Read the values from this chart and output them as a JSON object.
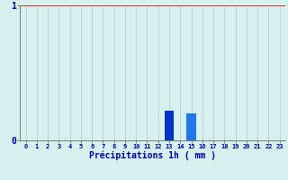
{
  "hours": [
    0,
    1,
    2,
    3,
    4,
    5,
    6,
    7,
    8,
    9,
    10,
    11,
    12,
    13,
    14,
    15,
    16,
    17,
    18,
    19,
    20,
    21,
    22,
    23
  ],
  "values": [
    0,
    0,
    0,
    0,
    0,
    0,
    0,
    0,
    0,
    0,
    0,
    0,
    0,
    0.22,
    0,
    0.2,
    0,
    0,
    0,
    0,
    0,
    0,
    0,
    0
  ],
  "bar_color_dark": "#0033cc",
  "bar_color_light": "#2277ee",
  "xlabel": "Précipitations 1h ( mm )",
  "ylim": [
    0,
    1
  ],
  "xlim": [
    -0.5,
    23.5
  ],
  "yticks": [
    0,
    1
  ],
  "xticks": [
    0,
    1,
    2,
    3,
    4,
    5,
    6,
    7,
    8,
    9,
    10,
    11,
    12,
    13,
    14,
    15,
    16,
    17,
    18,
    19,
    20,
    21,
    22,
    23
  ],
  "bg_color": "#d6f0ee",
  "grid_color_h": "#cc3333",
  "grid_color_v": "#b0c8cc",
  "tick_color": "#0000aa",
  "label_color": "#0000aa",
  "spine_color": "#777777",
  "fig_width": 3.2,
  "fig_height": 2.0,
  "dpi": 100
}
